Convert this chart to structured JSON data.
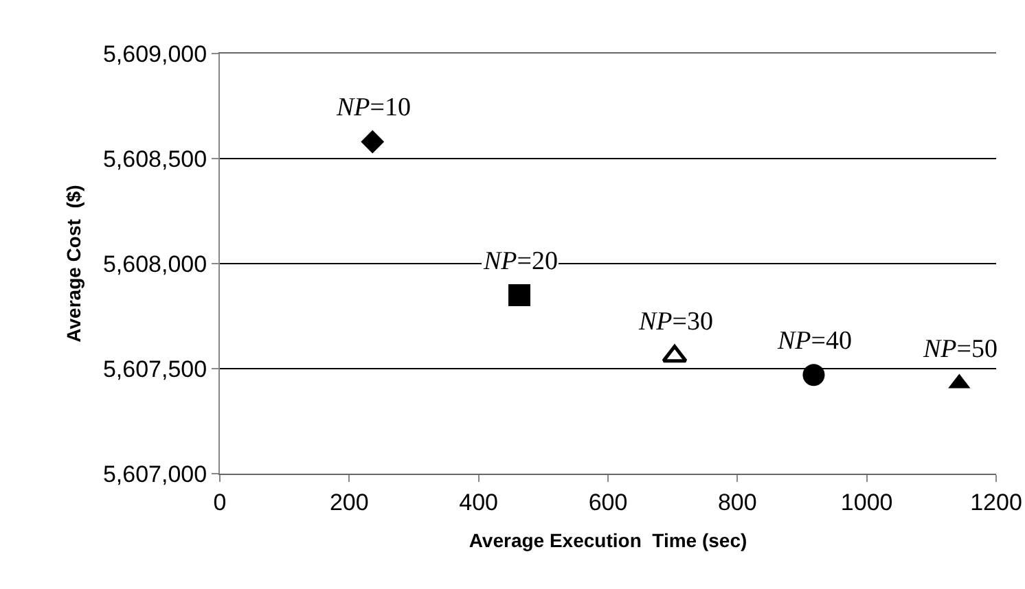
{
  "chart_data": {
    "type": "scatter",
    "xlabel": "Average Execution  Time (sec)",
    "ylabel": "Average Cost  ($)",
    "xlim": [
      0,
      1200
    ],
    "xticks": [
      0,
      200,
      400,
      600,
      800,
      1000,
      1200
    ],
    "ylim": [
      5607000,
      5609000
    ],
    "yticks": [
      {
        "value": 5607000,
        "label": "5,607,000"
      },
      {
        "value": 5607500,
        "label": "5,607,500"
      },
      {
        "value": 5608000,
        "label": "5,608,000"
      },
      {
        "value": 5608500,
        "label": "5,608,500"
      },
      {
        "value": 5609000,
        "label": "5,609,000"
      }
    ],
    "grid": "y",
    "series": [
      {
        "x": [
          236
        ],
        "values": [
          5608580
        ],
        "color": "#000000",
        "marker": "diamond"
      },
      {
        "x": [
          463
        ],
        "values": [
          5607850
        ],
        "color": "#000000",
        "marker": "square"
      },
      {
        "x": [
          703
        ],
        "values": [
          5607560
        ],
        "color": "#000000",
        "marker": "triangle-open"
      },
      {
        "x": [
          918
        ],
        "values": [
          5607470
        ],
        "color": "#000000",
        "marker": "circle"
      },
      {
        "x": [
          1143
        ],
        "values": [
          5607430
        ],
        "color": "#000000",
        "marker": "triangle"
      }
    ],
    "annotations": [
      {
        "text": "NP=10",
        "x": 236,
        "y": 5608580
      },
      {
        "text": "NP=20",
        "x": 463,
        "y": 5607850
      },
      {
        "text": "NP=30",
        "x": 703,
        "y": 5607560
      },
      {
        "text": "NP=40",
        "x": 918,
        "y": 5607470
      },
      {
        "text": "NP=50",
        "x": 1143,
        "y": 5607430
      }
    ]
  }
}
